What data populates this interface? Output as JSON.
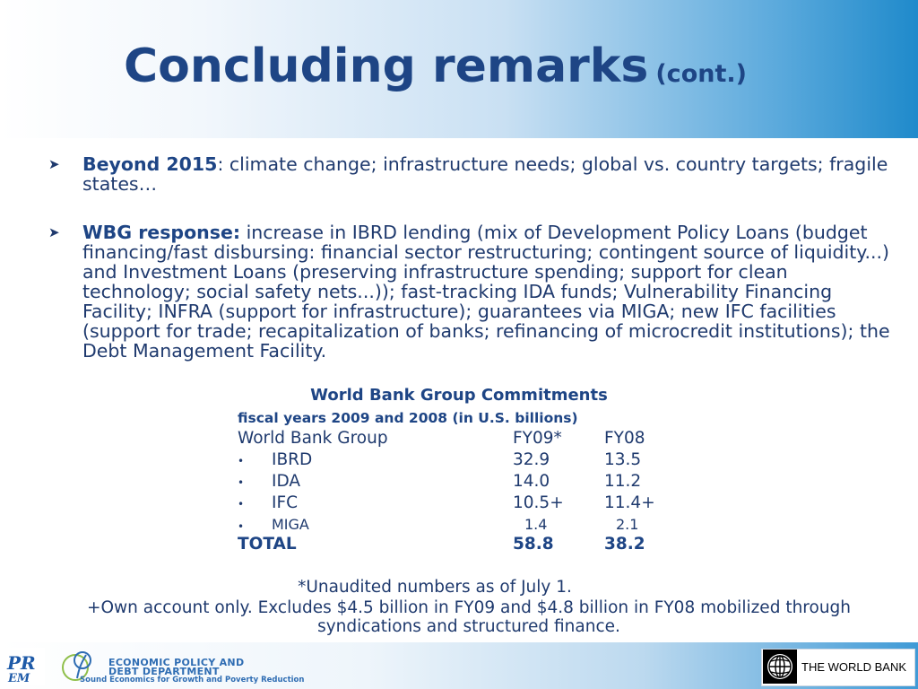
{
  "slide": {
    "title": "Concluding remarks",
    "title_suffix": "(cont.)"
  },
  "bullets": [
    {
      "lead": "Beyond 2015",
      "text": ": climate change; infrastructure needs; global vs. country targets; fragile states…"
    },
    {
      "lead": "WBG response:",
      "text": " increase in IBRD lending (mix of Development Policy Loans (budget financing/fast disbursing: financial sector restructuring; contingent source of liquidity...) and Investment Loans (preserving infrastructure spending; support for clean technology; social safety nets...)); fast-tracking IDA funds; Vulnerability Financing Facility; INFRA (support for infrastructure); guarantees via MIGA; new IFC facilities (support for trade; recapitalization of banks; refinancing of microcredit institutions); the Debt Management Facility."
    }
  ],
  "table": {
    "title": "World Bank Group Commitments",
    "subtitle": "fiscal years 2009 and 2008 (in U.S. billions)",
    "header": {
      "name": "World Bank Group",
      "fy09": "FY09*",
      "fy08": "FY08"
    },
    "rows": [
      {
        "bullet": "•",
        "name": "IBRD",
        "fy09": "32.9",
        "fy08": "13.5"
      },
      {
        "bullet": "•",
        "name": "IDA",
        "fy09": "14.0",
        "fy08": "11.2"
      },
      {
        "bullet": "•",
        "name": "IFC",
        "fy09": "10.5+",
        "fy08": "11.4+"
      },
      {
        "bullet": "•",
        "name": "MIGA",
        "fy09": "1.4",
        "fy08": "2.1"
      }
    ],
    "total": {
      "name": "TOTAL",
      "fy09": "58.8",
      "fy08": "38.2"
    }
  },
  "notes": {
    "unaudited": "*Unaudited numbers as of July 1.",
    "own_account": "+Own account only. Excludes $4.5 billion in FY09 and $4.8 billion in FY08 mobilized through syndications and structured finance."
  },
  "footer": {
    "epd_line1": "ECONOMIC POLICY AND",
    "epd_line2": "DEBT DEPARTMENT",
    "epd_tagline": "Sound Economics for Growth and Poverty Reduction",
    "world_bank": "THE WORLD BANK"
  },
  "icons": {
    "bullet_arrow": "arrow-bullet-icon",
    "prem_logo": "prem-logo-icon",
    "epd_logo": "epd-logo-icon",
    "globe": "world-bank-globe-icon"
  },
  "colors": {
    "title": "#1e4585",
    "body_text": "#1f3a6e",
    "header_gradient_end": "#1f8acb"
  }
}
